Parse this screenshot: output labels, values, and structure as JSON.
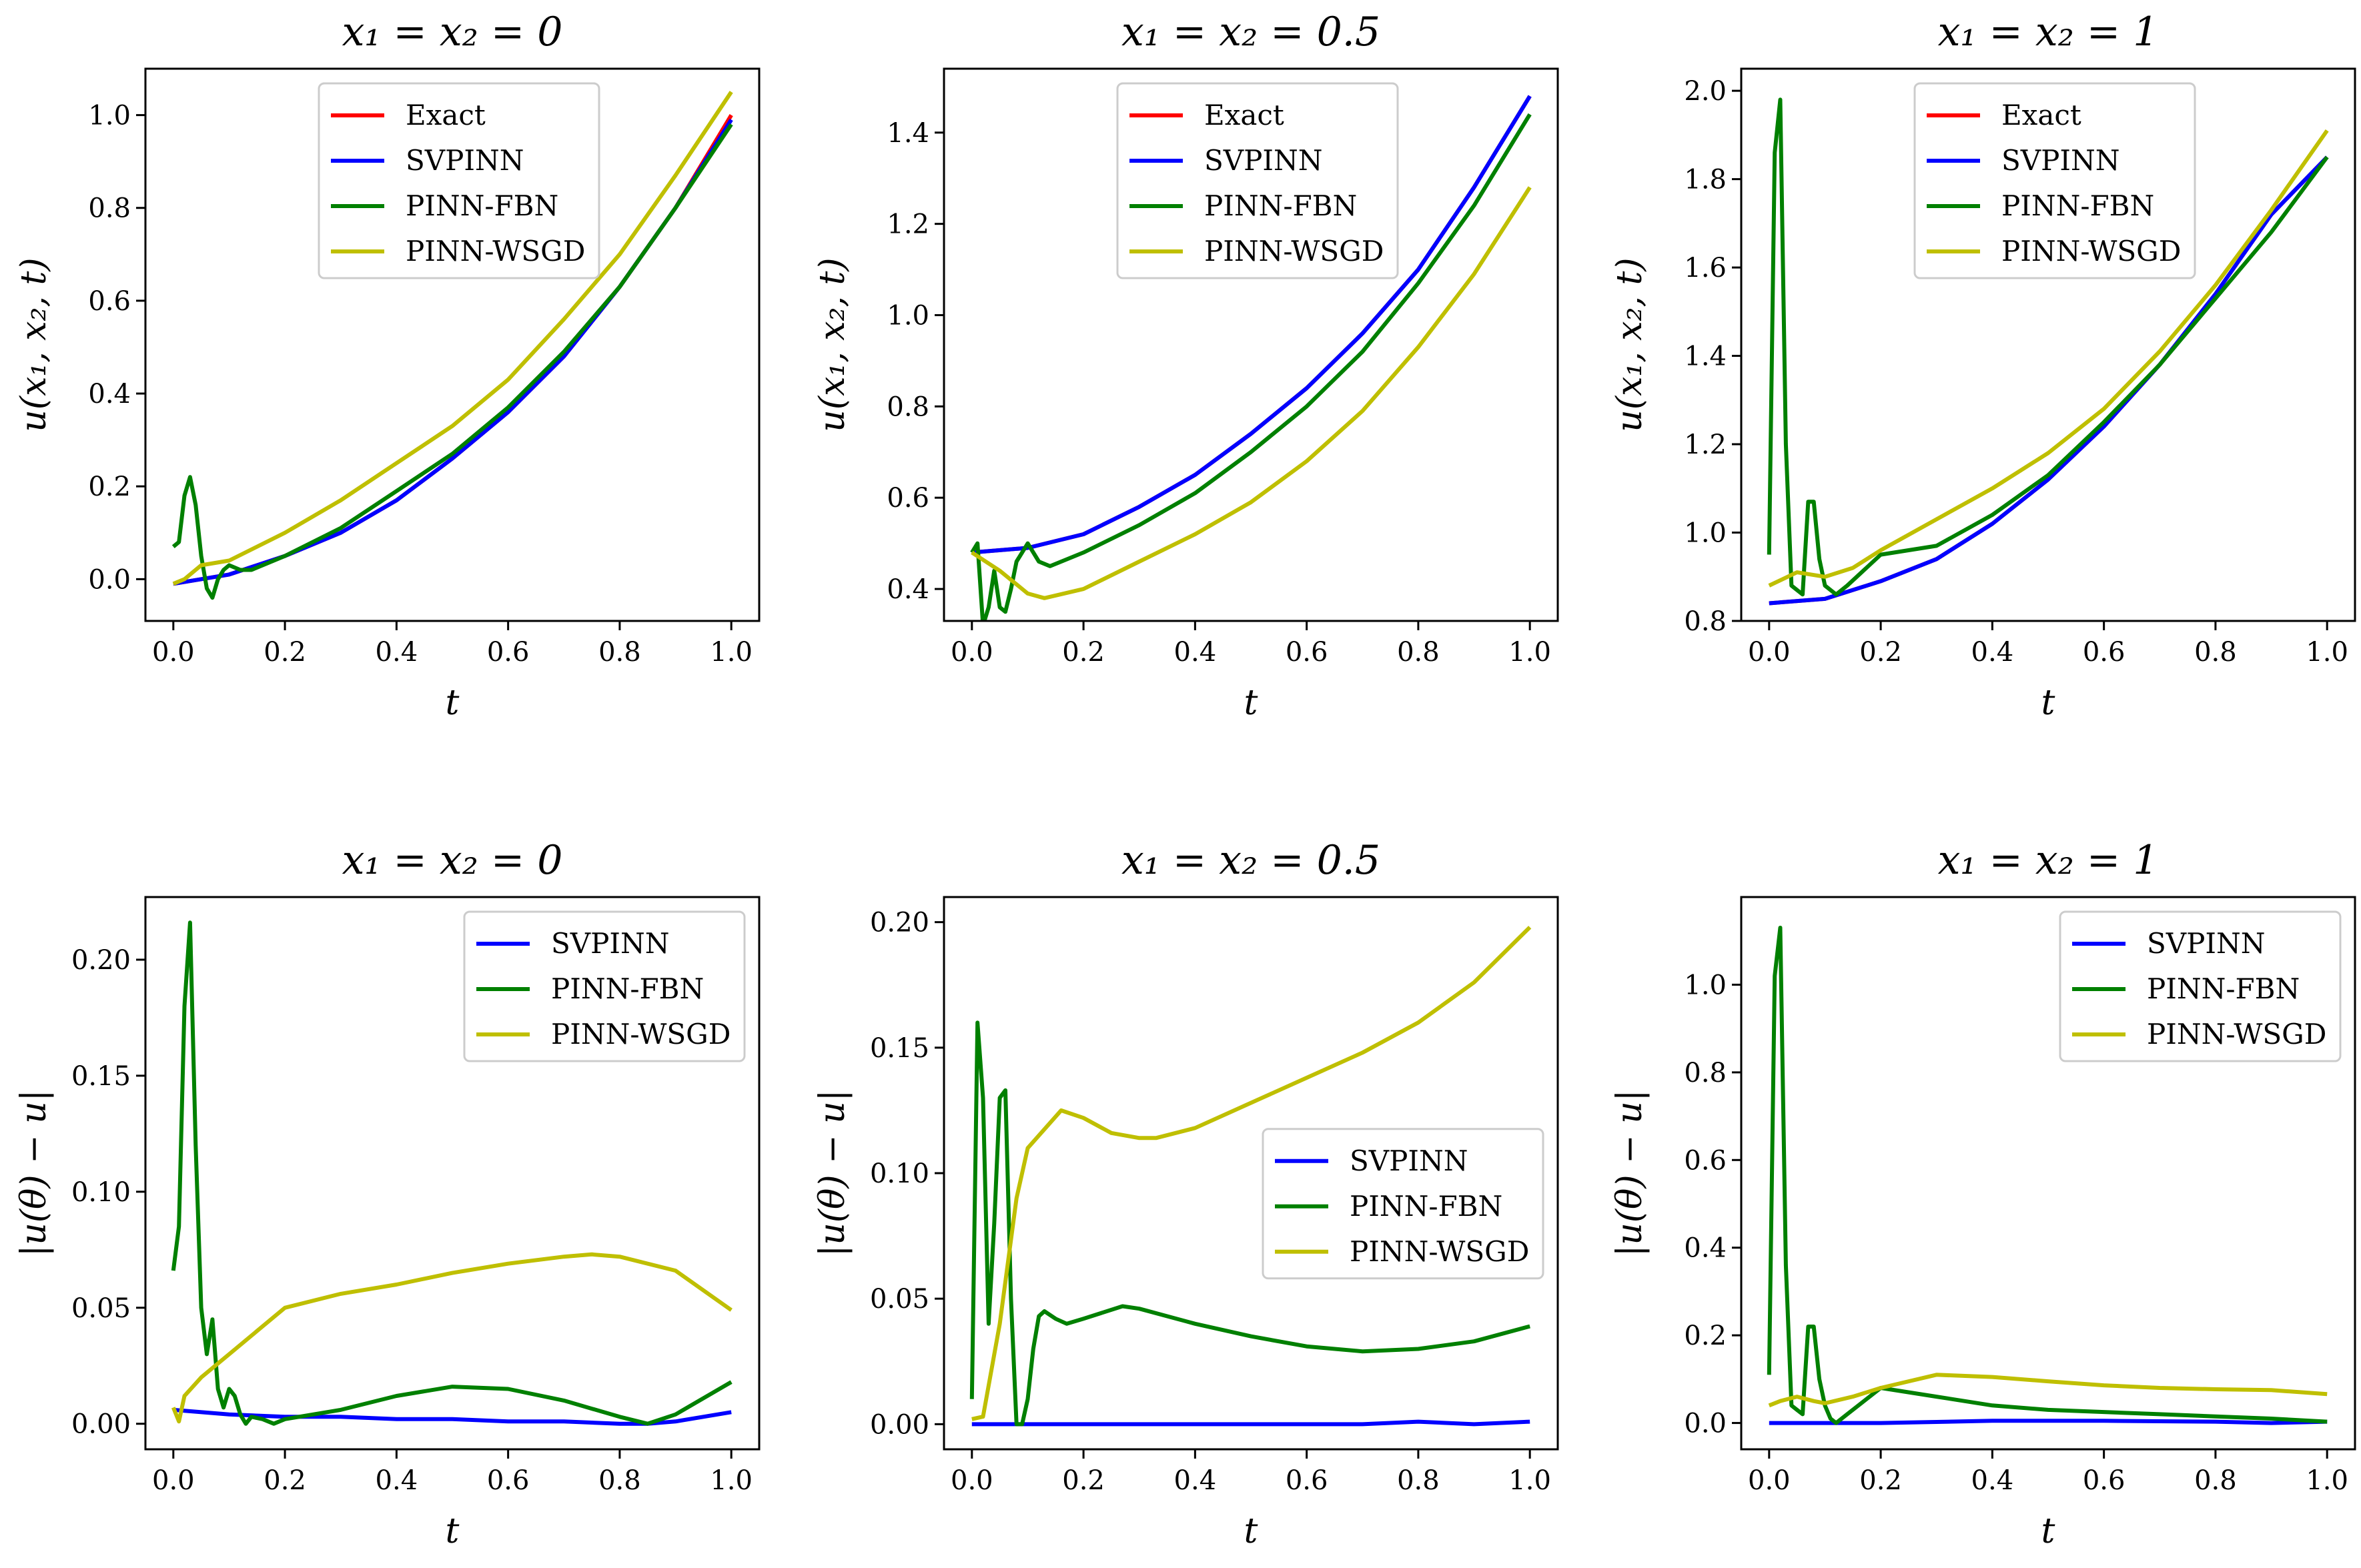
{
  "chart_data": [
    {
      "type": "line",
      "title": "x₁ = x₂ = 0",
      "xlabel": "t",
      "ylabel": "u(x₁, x₂, t)",
      "xlim": [
        -0.05,
        1.05
      ],
      "ylim": [
        -0.09,
        1.1
      ],
      "xticks": [
        0.0,
        0.2,
        0.4,
        0.6,
        0.8,
        1.0
      ],
      "xtick_labels": [
        "0.0",
        "0.2",
        "0.4",
        "0.6",
        "0.8",
        "1.0"
      ],
      "yticks": [
        0.0,
        0.2,
        0.4,
        0.6,
        0.8,
        1.0
      ],
      "ytick_labels": [
        "0.0",
        "0.2",
        "0.4",
        "0.6",
        "0.8",
        "1.0"
      ],
      "legend_position": "top-center",
      "series": [
        {
          "name": "Exact",
          "color": "#ff0000",
          "x": [
            0,
            0.1,
            0.2,
            0.3,
            0.4,
            0.5,
            0.6,
            0.7,
            0.8,
            0.9,
            1.0
          ],
          "y": [
            -0.01,
            0.01,
            0.05,
            0.1,
            0.17,
            0.26,
            0.36,
            0.48,
            0.63,
            0.8,
            1.0
          ]
        },
        {
          "name": "SVPINN",
          "color": "#0000ff",
          "x": [
            0,
            0.1,
            0.2,
            0.3,
            0.4,
            0.5,
            0.6,
            0.7,
            0.8,
            0.9,
            1.0
          ],
          "y": [
            -0.01,
            0.01,
            0.05,
            0.1,
            0.17,
            0.26,
            0.36,
            0.48,
            0.63,
            0.8,
            0.99
          ]
        },
        {
          "name": "PINN-FBN",
          "color": "#008000",
          "x": [
            0,
            0.01,
            0.02,
            0.03,
            0.04,
            0.05,
            0.06,
            0.07,
            0.08,
            0.09,
            0.1,
            0.12,
            0.14,
            0.2,
            0.3,
            0.4,
            0.5,
            0.6,
            0.7,
            0.8,
            0.9,
            1.0
          ],
          "y": [
            0.07,
            0.08,
            0.18,
            0.22,
            0.16,
            0.05,
            -0.02,
            -0.04,
            0.0,
            0.02,
            0.03,
            0.02,
            0.02,
            0.05,
            0.11,
            0.19,
            0.27,
            0.37,
            0.49,
            0.63,
            0.8,
            0.98
          ]
        },
        {
          "name": "PINN-WSGD",
          "color": "#bfbf00",
          "x": [
            0,
            0.02,
            0.05,
            0.1,
            0.2,
            0.3,
            0.4,
            0.5,
            0.6,
            0.7,
            0.8,
            0.9,
            1.0
          ],
          "y": [
            -0.01,
            0.0,
            0.03,
            0.04,
            0.1,
            0.17,
            0.25,
            0.33,
            0.43,
            0.56,
            0.7,
            0.87,
            1.05
          ]
        }
      ]
    },
    {
      "type": "line",
      "title": "x₁ = x₂ = 0.5",
      "xlabel": "t",
      "ylabel": "u(x₁, x₂, t)",
      "xlim": [
        -0.05,
        1.05
      ],
      "ylim": [
        0.33,
        1.54
      ],
      "xticks": [
        0.0,
        0.2,
        0.4,
        0.6,
        0.8,
        1.0
      ],
      "xtick_labels": [
        "0.0",
        "0.2",
        "0.4",
        "0.6",
        "0.8",
        "1.0"
      ],
      "yticks": [
        0.4,
        0.6,
        0.8,
        1.0,
        1.2,
        1.4
      ],
      "ytick_labels": [
        "0.4",
        "0.6",
        "0.8",
        "1.0",
        "1.2",
        "1.4"
      ],
      "legend_position": "top-center",
      "series": [
        {
          "name": "Exact",
          "color": "#ff0000",
          "x": [
            0,
            0.1,
            0.2,
            0.3,
            0.4,
            0.5,
            0.6,
            0.7,
            0.8,
            0.9,
            1.0
          ],
          "y": [
            0.48,
            0.49,
            0.52,
            0.58,
            0.65,
            0.74,
            0.84,
            0.96,
            1.1,
            1.28,
            1.48
          ]
        },
        {
          "name": "SVPINN",
          "color": "#0000ff",
          "x": [
            0,
            0.1,
            0.2,
            0.3,
            0.4,
            0.5,
            0.6,
            0.7,
            0.8,
            0.9,
            1.0
          ],
          "y": [
            0.48,
            0.49,
            0.52,
            0.58,
            0.65,
            0.74,
            0.84,
            0.96,
            1.1,
            1.28,
            1.48
          ]
        },
        {
          "name": "PINN-FBN",
          "color": "#008000",
          "x": [
            0,
            0.01,
            0.02,
            0.03,
            0.04,
            0.05,
            0.06,
            0.07,
            0.08,
            0.09,
            0.1,
            0.12,
            0.14,
            0.2,
            0.3,
            0.4,
            0.5,
            0.6,
            0.7,
            0.8,
            0.9,
            1.0
          ],
          "y": [
            0.48,
            0.5,
            0.32,
            0.36,
            0.44,
            0.36,
            0.35,
            0.4,
            0.46,
            0.48,
            0.5,
            0.46,
            0.45,
            0.48,
            0.54,
            0.61,
            0.7,
            0.8,
            0.92,
            1.07,
            1.24,
            1.44
          ]
        },
        {
          "name": "PINN-WSGD",
          "color": "#bfbf00",
          "x": [
            0,
            0.05,
            0.1,
            0.13,
            0.2,
            0.3,
            0.4,
            0.5,
            0.6,
            0.7,
            0.8,
            0.9,
            1.0
          ],
          "y": [
            0.48,
            0.44,
            0.39,
            0.38,
            0.4,
            0.46,
            0.52,
            0.59,
            0.68,
            0.79,
            0.93,
            1.09,
            1.28
          ]
        }
      ]
    },
    {
      "type": "line",
      "title": "x₁ = x₂ = 1",
      "xlabel": "t",
      "ylabel": "u(x₁, x₂, t)",
      "xlim": [
        -0.05,
        1.05
      ],
      "ylim": [
        0.8,
        2.05
      ],
      "xticks": [
        0.0,
        0.2,
        0.4,
        0.6,
        0.8,
        1.0
      ],
      "xtick_labels": [
        "0.0",
        "0.2",
        "0.4",
        "0.6",
        "0.8",
        "1.0"
      ],
      "yticks": [
        0.8,
        1.0,
        1.2,
        1.4,
        1.6,
        1.8,
        2.0
      ],
      "ytick_labels": [
        "0.8",
        "1.0",
        "1.2",
        "1.4",
        "1.6",
        "1.8",
        "2.0"
      ],
      "legend_position": "top-center",
      "series": [
        {
          "name": "Exact",
          "color": "#ff0000",
          "x": [
            0,
            0.1,
            0.2,
            0.3,
            0.4,
            0.5,
            0.6,
            0.7,
            0.8,
            0.9,
            1.0
          ],
          "y": [
            0.84,
            0.85,
            0.89,
            0.94,
            1.02,
            1.12,
            1.24,
            1.38,
            1.54,
            1.72,
            1.85
          ]
        },
        {
          "name": "SVPINN",
          "color": "#0000ff",
          "x": [
            0,
            0.1,
            0.2,
            0.3,
            0.4,
            0.5,
            0.6,
            0.7,
            0.8,
            0.9,
            1.0
          ],
          "y": [
            0.84,
            0.85,
            0.89,
            0.94,
            1.02,
            1.12,
            1.24,
            1.38,
            1.54,
            1.72,
            1.85
          ]
        },
        {
          "name": "PINN-FBN",
          "color": "#008000",
          "x": [
            0,
            0.01,
            0.02,
            0.03,
            0.04,
            0.05,
            0.06,
            0.07,
            0.08,
            0.09,
            0.1,
            0.12,
            0.14,
            0.2,
            0.3,
            0.4,
            0.5,
            0.6,
            0.7,
            0.8,
            0.9,
            1.0
          ],
          "y": [
            0.95,
            1.86,
            1.98,
            1.2,
            0.88,
            0.87,
            0.86,
            1.07,
            1.07,
            0.94,
            0.88,
            0.86,
            0.88,
            0.95,
            0.97,
            1.04,
            1.13,
            1.25,
            1.38,
            1.53,
            1.68,
            1.85
          ]
        },
        {
          "name": "PINN-WSGD",
          "color": "#bfbf00",
          "x": [
            0,
            0.05,
            0.1,
            0.15,
            0.2,
            0.3,
            0.4,
            0.5,
            0.6,
            0.7,
            0.8,
            0.9,
            1.0
          ],
          "y": [
            0.88,
            0.91,
            0.9,
            0.92,
            0.96,
            1.03,
            1.1,
            1.18,
            1.28,
            1.41,
            1.56,
            1.73,
            1.91
          ]
        }
      ]
    },
    {
      "type": "line",
      "title": "x₁ = x₂ = 0",
      "xlabel": "t",
      "ylabel": "|u(θ) − u|",
      "xlim": [
        -0.05,
        1.05
      ],
      "ylim": [
        -0.011,
        0.227
      ],
      "xticks": [
        0.0,
        0.2,
        0.4,
        0.6,
        0.8,
        1.0
      ],
      "xtick_labels": [
        "0.0",
        "0.2",
        "0.4",
        "0.6",
        "0.8",
        "1.0"
      ],
      "yticks": [
        0.0,
        0.05,
        0.1,
        0.15,
        0.2
      ],
      "ytick_labels": [
        "0.00",
        "0.05",
        "0.10",
        "0.15",
        "0.20"
      ],
      "legend_position": "top-right",
      "series": [
        {
          "name": "SVPINN",
          "color": "#0000ff",
          "x": [
            0,
            0.1,
            0.2,
            0.3,
            0.4,
            0.5,
            0.6,
            0.7,
            0.8,
            0.85,
            0.9,
            1.0
          ],
          "y": [
            0.006,
            0.004,
            0.003,
            0.003,
            0.002,
            0.002,
            0.001,
            0.001,
            0.0,
            0.0,
            0.001,
            0.005
          ]
        },
        {
          "name": "PINN-FBN",
          "color": "#008000",
          "x": [
            0,
            0.01,
            0.02,
            0.03,
            0.04,
            0.05,
            0.06,
            0.07,
            0.08,
            0.09,
            0.1,
            0.11,
            0.12,
            0.13,
            0.14,
            0.16,
            0.18,
            0.2,
            0.3,
            0.4,
            0.5,
            0.6,
            0.7,
            0.8,
            0.85,
            0.9,
            1.0
          ],
          "y": [
            0.066,
            0.085,
            0.18,
            0.216,
            0.12,
            0.05,
            0.03,
            0.045,
            0.015,
            0.007,
            0.015,
            0.012,
            0.004,
            0.0,
            0.003,
            0.002,
            0.0,
            0.002,
            0.006,
            0.012,
            0.016,
            0.015,
            0.01,
            0.003,
            0.0,
            0.004,
            0.018
          ]
        },
        {
          "name": "PINN-WSGD",
          "color": "#bfbf00",
          "x": [
            0,
            0.01,
            0.02,
            0.05,
            0.1,
            0.15,
            0.2,
            0.3,
            0.4,
            0.5,
            0.6,
            0.7,
            0.75,
            0.8,
            0.9,
            1.0
          ],
          "y": [
            0.007,
            0.001,
            0.012,
            0.02,
            0.03,
            0.04,
            0.05,
            0.056,
            0.06,
            0.065,
            0.069,
            0.072,
            0.073,
            0.072,
            0.066,
            0.049
          ]
        }
      ]
    },
    {
      "type": "line",
      "title": "x₁ = x₂ = 0.5",
      "xlabel": "t",
      "ylabel": "|u(θ) − u|",
      "xlim": [
        -0.05,
        1.05
      ],
      "ylim": [
        -0.01,
        0.21
      ],
      "xticks": [
        0.0,
        0.2,
        0.4,
        0.6,
        0.8,
        1.0
      ],
      "xtick_labels": [
        "0.0",
        "0.2",
        "0.4",
        "0.6",
        "0.8",
        "1.0"
      ],
      "yticks": [
        0.0,
        0.05,
        0.1,
        0.15,
        0.2
      ],
      "ytick_labels": [
        "0.00",
        "0.05",
        "0.10",
        "0.15",
        "0.20"
      ],
      "legend_position": "center-right",
      "series": [
        {
          "name": "SVPINN",
          "color": "#0000ff",
          "x": [
            0,
            0.1,
            0.2,
            0.3,
            0.4,
            0.5,
            0.6,
            0.7,
            0.8,
            0.9,
            1.0
          ],
          "y": [
            0.0,
            0.0,
            0.0,
            0.0,
            0.0,
            0.0,
            0.0,
            0.0,
            0.001,
            0.0,
            0.001
          ]
        },
        {
          "name": "PINN-FBN",
          "color": "#008000",
          "x": [
            0,
            0.01,
            0.02,
            0.03,
            0.04,
            0.05,
            0.06,
            0.07,
            0.08,
            0.09,
            0.1,
            0.11,
            0.12,
            0.13,
            0.15,
            0.17,
            0.2,
            0.27,
            0.3,
            0.4,
            0.5,
            0.6,
            0.7,
            0.8,
            0.9,
            1.0
          ],
          "y": [
            0.01,
            0.16,
            0.13,
            0.04,
            0.08,
            0.13,
            0.133,
            0.05,
            0.0,
            0.0,
            0.01,
            0.03,
            0.043,
            0.045,
            0.042,
            0.04,
            0.042,
            0.047,
            0.046,
            0.04,
            0.035,
            0.031,
            0.029,
            0.03,
            0.033,
            0.039
          ]
        },
        {
          "name": "PINN-WSGD",
          "color": "#bfbf00",
          "x": [
            0,
            0.02,
            0.05,
            0.08,
            0.1,
            0.16,
            0.2,
            0.25,
            0.3,
            0.33,
            0.4,
            0.5,
            0.6,
            0.7,
            0.8,
            0.9,
            1.0
          ],
          "y": [
            0.002,
            0.003,
            0.04,
            0.09,
            0.11,
            0.125,
            0.122,
            0.116,
            0.114,
            0.114,
            0.118,
            0.128,
            0.138,
            0.148,
            0.16,
            0.176,
            0.198
          ]
        }
      ]
    },
    {
      "type": "line",
      "title": "x₁ = x₂ = 1",
      "xlabel": "t",
      "ylabel": "|u(θ) − u|",
      "xlim": [
        -0.05,
        1.05
      ],
      "ylim": [
        -0.06,
        1.2
      ],
      "xticks": [
        0.0,
        0.2,
        0.4,
        0.6,
        0.8,
        1.0
      ],
      "xtick_labels": [
        "0.0",
        "0.2",
        "0.4",
        "0.6",
        "0.8",
        "1.0"
      ],
      "yticks": [
        0.0,
        0.2,
        0.4,
        0.6,
        0.8,
        1.0
      ],
      "ytick_labels": [
        "0.0",
        "0.2",
        "0.4",
        "0.6",
        "0.8",
        "1.0"
      ],
      "legend_position": "top-right",
      "series": [
        {
          "name": "SVPINN",
          "color": "#0000ff",
          "x": [
            0,
            0.2,
            0.4,
            0.6,
            0.8,
            0.9,
            1.0
          ],
          "y": [
            0.0,
            0.0,
            0.005,
            0.005,
            0.003,
            0.0,
            0.003
          ]
        },
        {
          "name": "PINN-FBN",
          "color": "#008000",
          "x": [
            0,
            0.01,
            0.02,
            0.03,
            0.04,
            0.05,
            0.06,
            0.07,
            0.08,
            0.09,
            0.1,
            0.11,
            0.12,
            0.14,
            0.2,
            0.3,
            0.4,
            0.5,
            0.6,
            0.7,
            0.8,
            0.9,
            1.0
          ],
          "y": [
            0.11,
            1.02,
            1.13,
            0.36,
            0.04,
            0.03,
            0.02,
            0.22,
            0.22,
            0.1,
            0.04,
            0.01,
            0.0,
            0.02,
            0.08,
            0.06,
            0.04,
            0.03,
            0.025,
            0.02,
            0.015,
            0.01,
            0.003
          ]
        },
        {
          "name": "PINN-WSGD",
          "color": "#bfbf00",
          "x": [
            0,
            0.02,
            0.05,
            0.08,
            0.1,
            0.15,
            0.2,
            0.3,
            0.4,
            0.5,
            0.6,
            0.7,
            0.8,
            0.9,
            1.0
          ],
          "y": [
            0.04,
            0.05,
            0.06,
            0.05,
            0.045,
            0.06,
            0.08,
            0.11,
            0.105,
            0.095,
            0.086,
            0.08,
            0.077,
            0.075,
            0.066
          ]
        }
      ]
    }
  ]
}
